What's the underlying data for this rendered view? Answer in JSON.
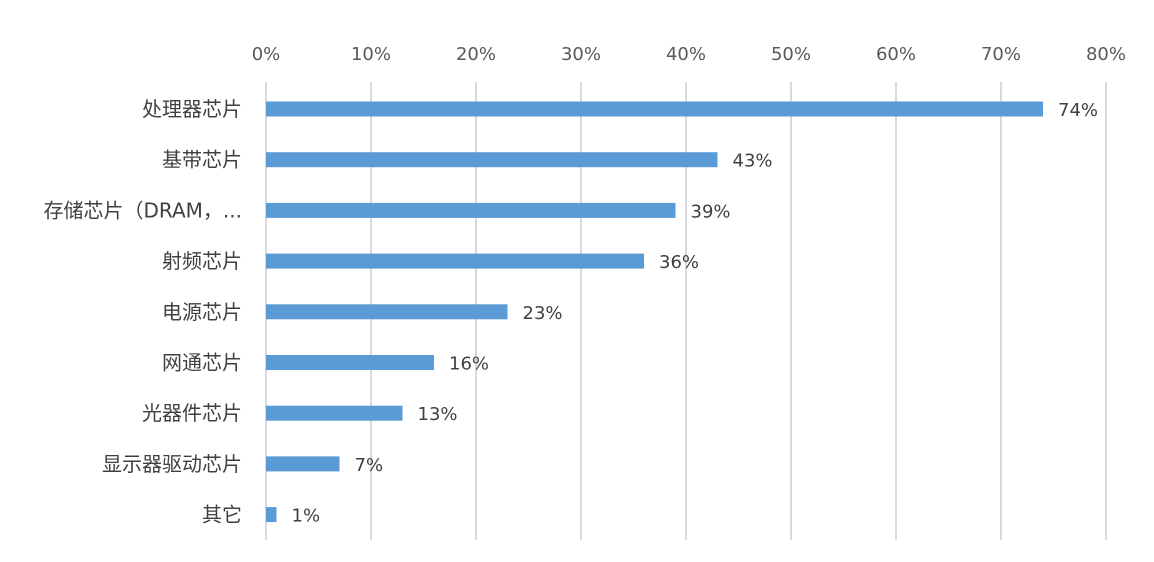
{
  "chart_data": {
    "type": "bar",
    "orientation": "horizontal",
    "categories": [
      "处理器芯片",
      "基带芯片",
      "存储芯片（DRAM，...",
      "射频芯片",
      "电源芯片",
      "网通芯片",
      "光器件芯片",
      "显示器驱动芯片",
      "其它"
    ],
    "values": [
      74,
      43,
      39,
      36,
      23,
      16,
      13,
      7,
      1
    ],
    "data_labels": [
      "74%",
      "43%",
      "39%",
      "36%",
      "23%",
      "16%",
      "13%",
      "7%",
      "1%"
    ],
    "xticks": [
      "0%",
      "10%",
      "20%",
      "30%",
      "40%",
      "50%",
      "60%",
      "70%",
      "80%"
    ],
    "xlim": [
      0,
      80
    ],
    "x_axis_position": "top",
    "grid": true,
    "bar_color": "#5b9bd5"
  }
}
